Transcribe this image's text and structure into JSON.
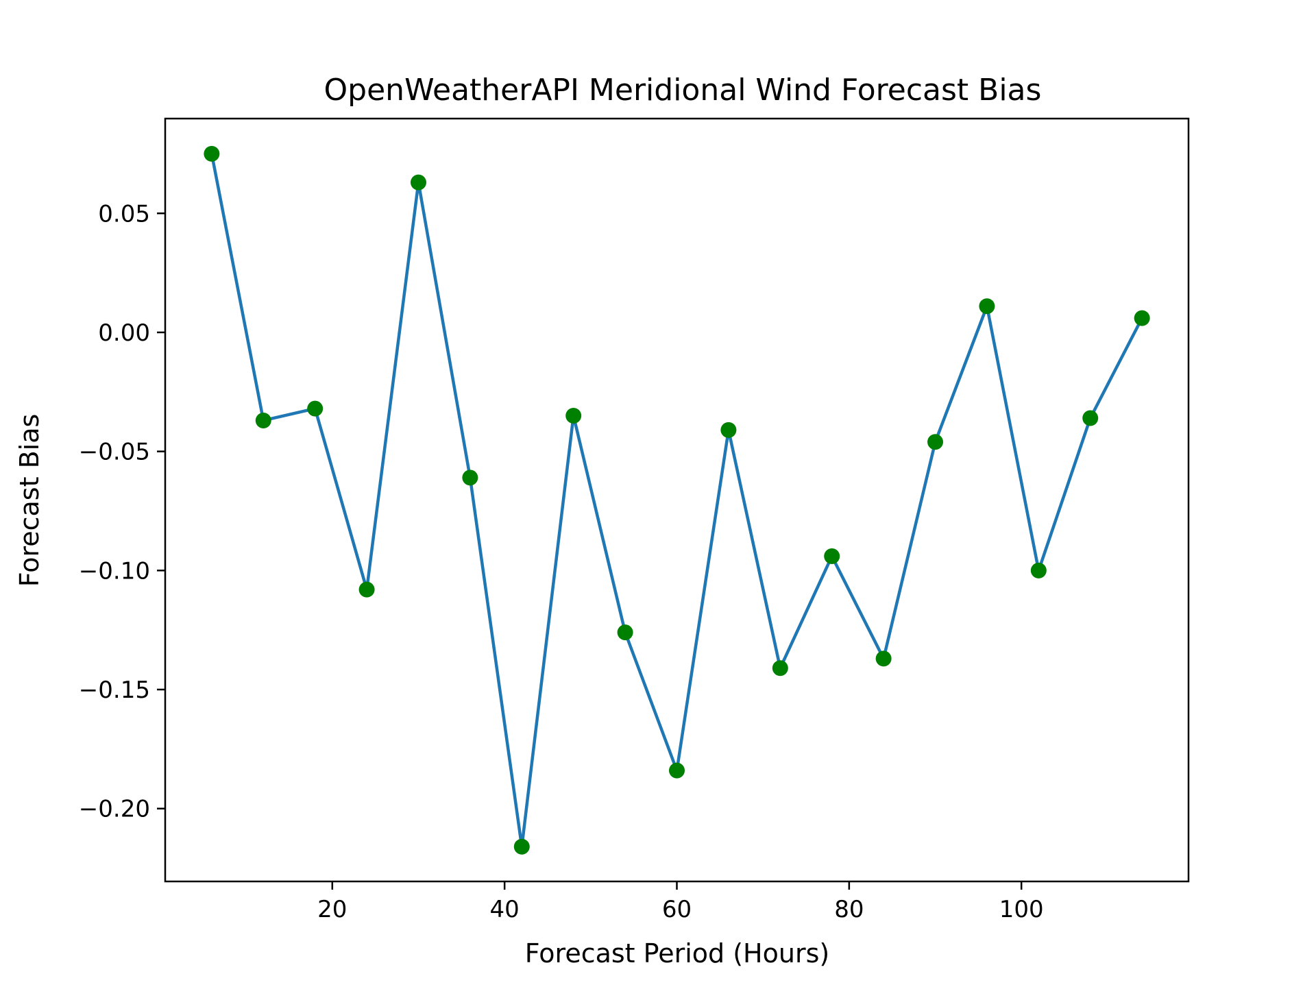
{
  "chart_data": {
    "type": "line",
    "title": "OpenWeatherAPI Meridional Wind Forecast Bias",
    "xlabel": "Forecast Period (Hours)",
    "ylabel": "Forecast Bias",
    "x": [
      6,
      12,
      18,
      24,
      30,
      36,
      42,
      48,
      54,
      60,
      66,
      72,
      78,
      84,
      90,
      96,
      102,
      108,
      114
    ],
    "series": [
      {
        "values": [
          0.075,
          -0.037,
          -0.032,
          -0.108,
          0.063,
          -0.061,
          -0.216,
          -0.035,
          -0.126,
          -0.184,
          -0.041,
          -0.141,
          -0.094,
          -0.137,
          -0.046,
          0.011,
          -0.1,
          -0.036,
          0.006
        ],
        "line_color": "#1f77b4",
        "marker_color": "#008000"
      }
    ],
    "xlim": [
      0.6,
      119.4
    ],
    "ylim": [
      -0.2306,
      0.0898
    ],
    "xticks": [
      20,
      40,
      60,
      80,
      100
    ],
    "xtick_labels": [
      "20",
      "40",
      "60",
      "80",
      "100"
    ],
    "yticks": [
      0.05,
      0.0,
      -0.05,
      -0.1,
      -0.15,
      -0.2
    ],
    "ytick_labels": [
      "0.05",
      "0.00",
      "−0.05",
      "−0.10",
      "−0.15",
      "−0.20"
    ],
    "grid": false,
    "legend": false
  }
}
